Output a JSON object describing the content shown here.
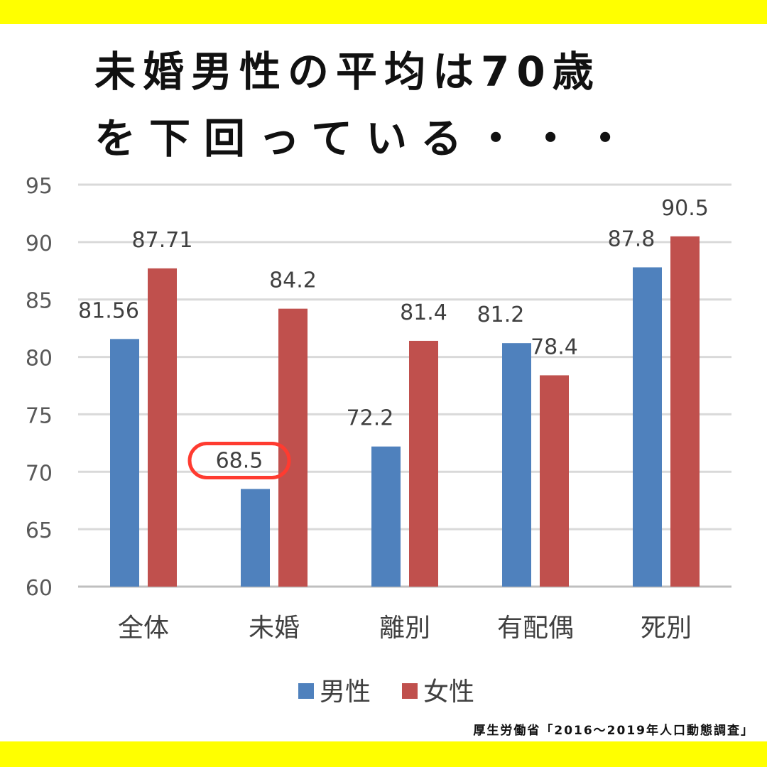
{
  "headline": {
    "line1": "未婚男性の平均は70歳",
    "line2": "を下回っている・・・"
  },
  "source": "厚生労働省「2016〜2019年人口動態調査」",
  "chart_data": {
    "type": "bar",
    "categories": [
      "全体",
      "未婚",
      "離別",
      "有配偶",
      "死別"
    ],
    "series": [
      {
        "name": "男性",
        "values": [
          81.56,
          68.5,
          72.2,
          81.2,
          87.8
        ],
        "labels": [
          "81.56",
          "68.5",
          "72.2",
          "81.2",
          "87.8"
        ],
        "color": "#4f81bd"
      },
      {
        "name": "女性",
        "values": [
          87.71,
          84.2,
          81.4,
          78.4,
          90.5
        ],
        "labels": [
          "87.71",
          "84.2",
          "81.4",
          "78.4",
          "90.5"
        ],
        "color": "#c0504d"
      }
    ],
    "ylim": [
      60,
      95
    ],
    "yticks": [
      60,
      65,
      70,
      75,
      80,
      85,
      90,
      95
    ],
    "grid": true,
    "legend": "bottom",
    "highlight": {
      "series": 0,
      "category": 1,
      "color": "#ff3b30"
    }
  }
}
